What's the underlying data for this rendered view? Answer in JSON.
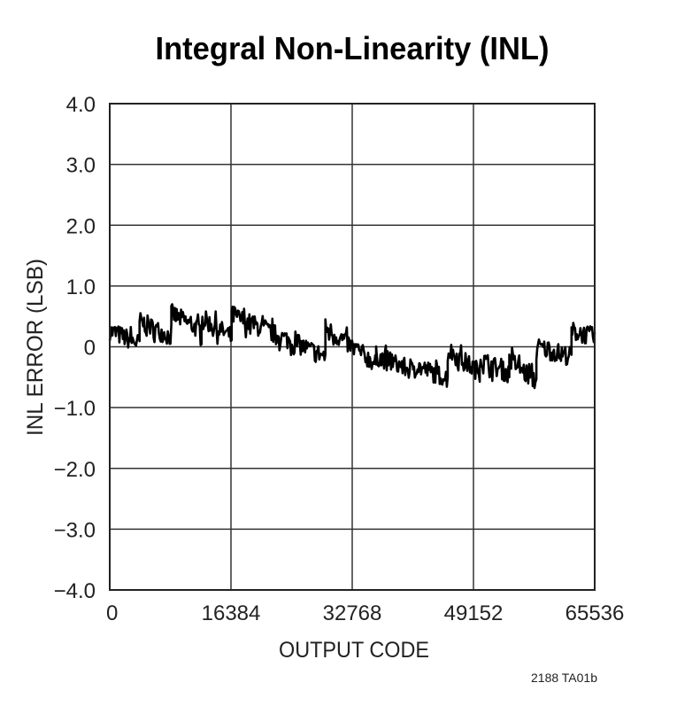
{
  "chart_data": {
    "type": "line",
    "title": "Integral Non-Linearity (INL)",
    "xlabel": "OUTPUT CODE",
    "ylabel": "INL ERROR (LSB)",
    "xlim": [
      0,
      65536
    ],
    "ylim": [
      -4.0,
      4.0
    ],
    "xticks": [
      0,
      16384,
      32768,
      49152,
      65536
    ],
    "xtick_labels": [
      "0",
      "16384",
      "32768",
      "49152",
      "65536"
    ],
    "yticks": [
      4,
      3,
      2,
      1,
      0,
      -1,
      -2,
      -3,
      -4
    ],
    "ytick_labels": [
      "4.0",
      "3.0",
      "2.0",
      "1.0",
      "0",
      "−1.0",
      "−2.0",
      "−3.0",
      "−4.0"
    ],
    "grid": true,
    "line_color": "#000000",
    "noise_peak_to_peak_lsb": 0.4,
    "series": [
      {
        "segments": [
          {
            "x": [
              0,
              4030
            ],
            "y": [
              0.26,
              0.05
            ]
          },
          {
            "x": [
              4030,
              8320
            ],
            "y": [
              0.42,
              0.16
            ]
          },
          {
            "x": [
              8320,
              12400
            ],
            "y": [
              0.55,
              0.26
            ]
          },
          {
            "x": [
              12400,
              16480
            ],
            "y": [
              0.47,
              0.16
            ]
          },
          {
            "x": [
              16480,
              29150
            ],
            "y": [
              0.52,
              -0.16
            ]
          },
          {
            "x": [
              29150,
              36000
            ],
            "y": [
              0.31,
              -0.28
            ]
          },
          {
            "x": [
              36000,
              41000
            ],
            "y": [
              -0.15,
              -0.4
            ]
          },
          {
            "x": [
              41000,
              45670
            ],
            "y": [
              -0.3,
              -0.52
            ]
          },
          {
            "x": [
              45670,
              50000
            ],
            "y": [
              -0.05,
              -0.42
            ]
          },
          {
            "x": [
              50000,
              54000
            ],
            "y": [
              -0.2,
              -0.45
            ]
          },
          {
            "x": [
              54000,
              57650
            ],
            "y": [
              -0.2,
              -0.58
            ]
          },
          {
            "x": [
              57650,
              62400
            ],
            "y": [
              0.0,
              -0.16
            ]
          },
          {
            "x": [
              62400,
              65535
            ],
            "y": [
              0.26,
              0.16
            ]
          }
        ]
      }
    ]
  },
  "footnote": "2188 TA01b"
}
